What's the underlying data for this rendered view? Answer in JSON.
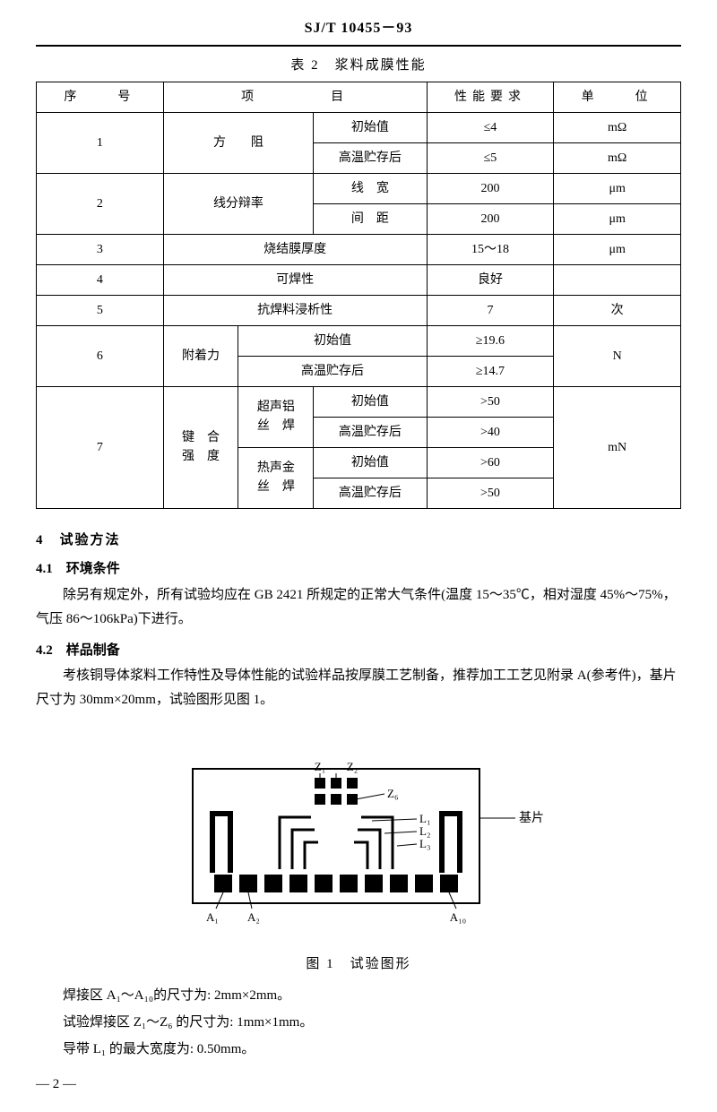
{
  "header": {
    "standard_id": "SJ/T 10455－93"
  },
  "table2": {
    "caption": "表 2　浆料成膜性能",
    "head": {
      "c1": "序　　号",
      "c2": "项　　　　目",
      "c3": "性能要求",
      "c4": "单　　位"
    },
    "rows": [
      {
        "no": "1",
        "item": "方　　阻",
        "sub1": "初始值",
        "val1": "≤4",
        "unit1": "mΩ",
        "sub2": "高温贮存后",
        "val2": "≤5",
        "unit2": "mΩ"
      },
      {
        "no": "2",
        "item": "线分辩率",
        "sub1": "线　宽",
        "val1": "200",
        "unit1": "μm",
        "sub2": "间　距",
        "val2": "200",
        "unit2": "μm"
      },
      {
        "no": "3",
        "item": "烧结膜厚度",
        "val": "15～18",
        "unit": "μm"
      },
      {
        "no": "4",
        "item": "可焊性",
        "val": "良好",
        "unit": ""
      },
      {
        "no": "5",
        "item": "抗焊料浸析性",
        "val": "7",
        "unit": "次"
      },
      {
        "no": "6",
        "item": "附着力",
        "sub1": "初始值",
        "val1": "≥19.6",
        "sub2": "高温贮存后",
        "val2": "≥14.7",
        "unit": "N"
      },
      {
        "no": "7",
        "item": "键　合\n强　度",
        "g1": "超声铝\n丝　焊",
        "g1s1": "初始值",
        "g1v1": ">50",
        "g1s2": "高温贮存后",
        "g1v2": ">40",
        "g2": "热声金\n丝　焊",
        "g2s1": "初始值",
        "g2v1": ">60",
        "g2s2": "高温贮存后",
        "g2v2": ">50",
        "unit": "mN"
      }
    ]
  },
  "section4": {
    "title": "4　试验方法",
    "s41_title": "4.1　环境条件",
    "s41_body": "除另有规定外，所有试验均应在 GB 2421 所规定的正常大气条件(温度 15～35℃，相对湿度 45%～75%，气压 86～106kPa)下进行。",
    "s42_title": "4.2　样品制备",
    "s42_body": "考核铜导体浆料工作特性及导体性能的试验样品按厚膜工艺制备，推荐加工工艺见附录 A(参考件)，基片尺寸为 30mm×20mm，试验图形见图 1。"
  },
  "figure1": {
    "caption": "图 1　试验图形",
    "labels": {
      "Z1": "Z₁",
      "Z2": "Z₂",
      "Z6": "Z₆",
      "L1": "L₁",
      "L2": "L₂",
      "L3": "L₃",
      "A1": "A₁",
      "A2": "A₂",
      "A10": "A₁₀",
      "substrate": "基片"
    },
    "style": {
      "stroke": "#000000",
      "fill": "#000000",
      "bg": "#ffffff",
      "outer_w": 2,
      "trace_w": 3,
      "pad_big": 20,
      "pad_small": 12
    },
    "notes": {
      "n1": "焊接区 A₁～A₁₀的尺寸为: 2mm×2mm。",
      "n2": "试验焊接区 Z₁～Z₆ 的尺寸为: 1mm×1mm。",
      "n3": "导带 L₁ 的最大宽度为: 0.50mm。"
    }
  },
  "page": "— 2 —"
}
